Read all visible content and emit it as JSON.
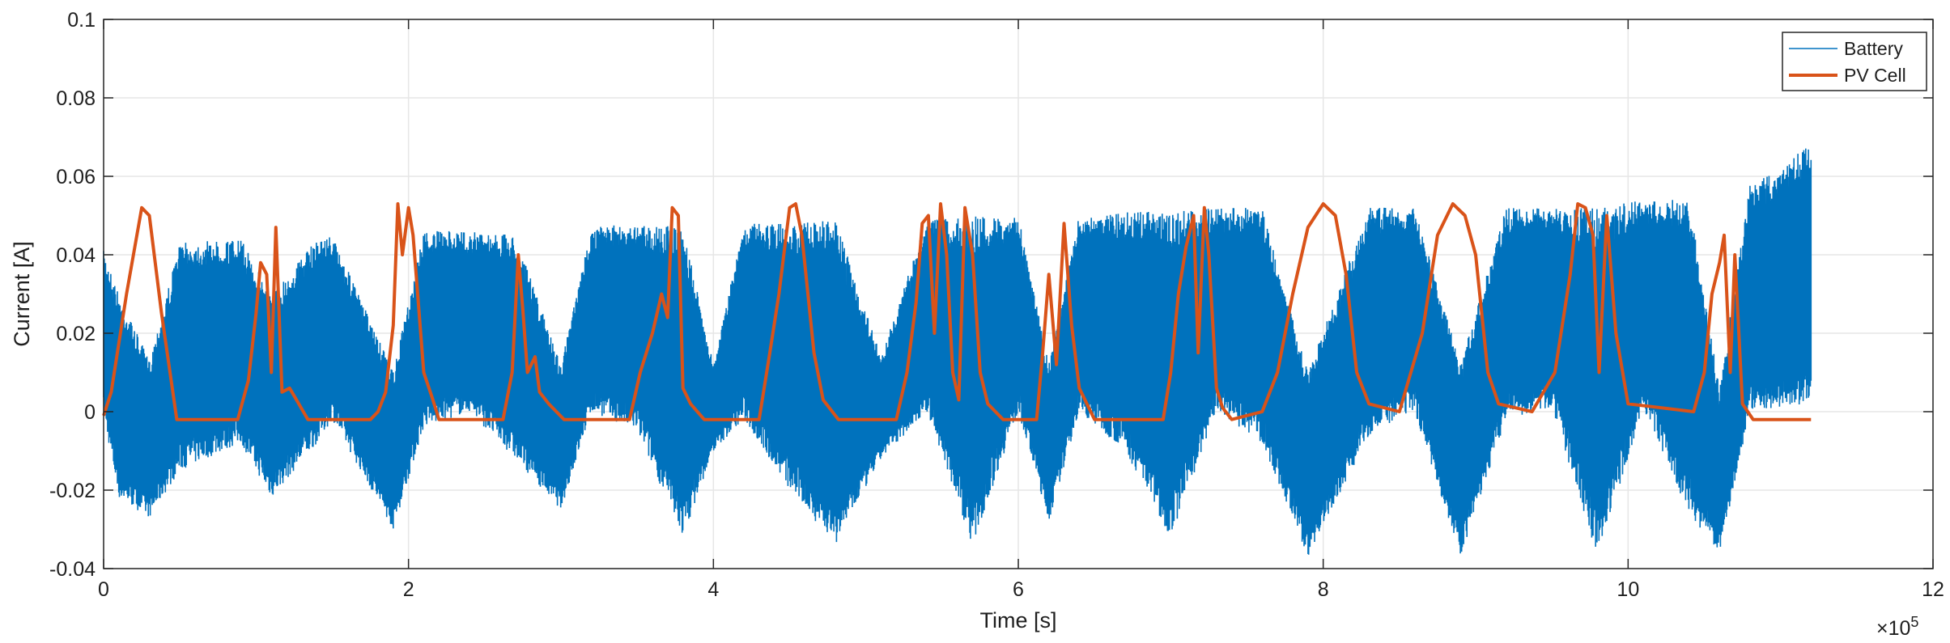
{
  "chart_data": {
    "type": "line",
    "title": "",
    "xlabel": "Time [s]",
    "ylabel": "Current [A]",
    "xlim": [
      0,
      1200000
    ],
    "ylim": [
      -0.04,
      0.1
    ],
    "xticks": [
      0,
      200000,
      400000,
      600000,
      800000,
      1000000,
      1200000
    ],
    "xtick_labels": [
      "0",
      "2",
      "4",
      "6",
      "8",
      "10",
      "12"
    ],
    "yticks": [
      -0.04,
      -0.02,
      0,
      0.02,
      0.04,
      0.06,
      0.08,
      0.1
    ],
    "ytick_labels": [
      "-0.04",
      "-0.02",
      "0",
      "0.02",
      "0.04",
      "0.06",
      "0.08",
      "0.1"
    ],
    "x_multiplier": {
      "base": "×10",
      "exponent": "5"
    },
    "grid": true,
    "legend_position": "top-right",
    "series": [
      {
        "name": "Battery",
        "color": "#0072BD",
        "style": "dense oscillating band (min/max envelope)",
        "x": [
          0,
          10000,
          30000,
          50000,
          90000,
          110000,
          140000,
          150000,
          190000,
          210000,
          240000,
          270000,
          300000,
          320000,
          350000,
          380000,
          400000,
          420000,
          450000,
          480000,
          510000,
          540000,
          570000,
          600000,
          620000,
          640000,
          670000,
          700000,
          730000,
          760000,
          790000,
          830000,
          860000,
          890000,
          920000,
          950000,
          980000,
          1010000,
          1040000,
          1060000,
          1080000,
          1100000,
          1120000
        ],
        "upper": [
          0.041,
          0.03,
          0.013,
          0.043,
          0.044,
          0.03,
          0.044,
          0.045,
          0.01,
          0.046,
          0.046,
          0.045,
          0.012,
          0.047,
          0.048,
          0.047,
          0.012,
          0.048,
          0.048,
          0.049,
          0.014,
          0.049,
          0.05,
          0.05,
          0.012,
          0.05,
          0.051,
          0.051,
          0.052,
          0.052,
          0.01,
          0.052,
          0.052,
          0.012,
          0.052,
          0.052,
          0.052,
          0.054,
          0.054,
          0.006,
          0.058,
          0.062,
          0.069
        ],
        "lower": [
          -0.001,
          -0.022,
          -0.027,
          -0.015,
          -0.008,
          -0.022,
          -0.008,
          -0.002,
          -0.03,
          -0.004,
          0.0,
          -0.012,
          -0.025,
          0.0,
          -0.005,
          -0.032,
          -0.01,
          -0.002,
          -0.02,
          -0.034,
          -0.012,
          0.0,
          -0.034,
          0.0,
          -0.028,
          0.0,
          -0.01,
          -0.032,
          0.0,
          -0.008,
          -0.037,
          -0.006,
          0.0,
          -0.037,
          -0.002,
          0.001,
          -0.037,
          0.001,
          -0.026,
          -0.036,
          0.0,
          0.001,
          0.002
        ]
      },
      {
        "name": "PV Cell",
        "color": "#D95319",
        "style": "thick line",
        "x": [
          0,
          5000,
          15000,
          25000,
          30000,
          38000,
          48000,
          88000,
          95000,
          100000,
          103000,
          107000,
          110000,
          113000,
          117000,
          122000,
          128000,
          134000,
          175000,
          180000,
          185000,
          190000,
          193000,
          196000,
          200000,
          203000,
          210000,
          216000,
          220000,
          262000,
          268000,
          272000,
          275000,
          278000,
          283000,
          286000,
          292000,
          302000,
          345000,
          352000,
          360000,
          366000,
          370000,
          373000,
          377000,
          380000,
          385000,
          394000,
          430000,
          437000,
          443000,
          450000,
          454000,
          458000,
          462000,
          466000,
          472000,
          482000,
          520000,
          527000,
          533000,
          537000,
          541000,
          545000,
          549000,
          553000,
          557000,
          561000,
          565000,
          570000,
          575000,
          580000,
          590000,
          612000,
          616000,
          620000,
          625000,
          630000,
          635000,
          640000,
          650000,
          695000,
          700000,
          705000,
          710000,
          715000,
          718000,
          722000,
          725000,
          730000,
          734000,
          740000,
          760000,
          770000,
          780000,
          790000,
          800000,
          808000,
          815000,
          822000,
          830000,
          850000,
          865000,
          875000,
          885000,
          893000,
          900000,
          908000,
          915000,
          937000,
          952000,
          962000,
          967000,
          972000,
          977000,
          981000,
          986000,
          992000,
          1000000,
          1043000,
          1050000,
          1055000,
          1060000,
          1063000,
          1067000,
          1070000,
          1075000,
          1082000,
          1120000
        ],
        "y": [
          -0.001,
          0.005,
          0.03,
          0.052,
          0.05,
          0.025,
          -0.002,
          -0.002,
          0.008,
          0.025,
          0.038,
          0.035,
          0.01,
          0.047,
          0.005,
          0.006,
          0.002,
          -0.002,
          -0.002,
          0.0,
          0.005,
          0.022,
          0.053,
          0.04,
          0.052,
          0.045,
          0.01,
          0.003,
          -0.002,
          -0.002,
          0.01,
          0.04,
          0.026,
          0.01,
          0.014,
          0.005,
          0.002,
          -0.002,
          -0.002,
          0.01,
          0.02,
          0.03,
          0.024,
          0.052,
          0.05,
          0.006,
          0.002,
          -0.002,
          -0.002,
          0.015,
          0.03,
          0.052,
          0.053,
          0.045,
          0.03,
          0.015,
          0.003,
          -0.002,
          -0.002,
          0.01,
          0.028,
          0.048,
          0.05,
          0.02,
          0.053,
          0.04,
          0.01,
          0.003,
          0.052,
          0.04,
          0.01,
          0.002,
          -0.002,
          -0.002,
          0.015,
          0.035,
          0.012,
          0.048,
          0.022,
          0.006,
          -0.002,
          -0.002,
          0.01,
          0.03,
          0.042,
          0.05,
          0.015,
          0.052,
          0.04,
          0.006,
          0.001,
          -0.002,
          0.0,
          0.01,
          0.03,
          0.047,
          0.053,
          0.05,
          0.035,
          0.01,
          0.002,
          0.0,
          0.02,
          0.045,
          0.053,
          0.05,
          0.04,
          0.01,
          0.002,
          0.0,
          0.01,
          0.035,
          0.053,
          0.052,
          0.045,
          0.01,
          0.05,
          0.02,
          0.002,
          0.0,
          0.01,
          0.03,
          0.038,
          0.045,
          0.01,
          0.04,
          0.002,
          -0.002,
          -0.002
        ]
      }
    ]
  }
}
